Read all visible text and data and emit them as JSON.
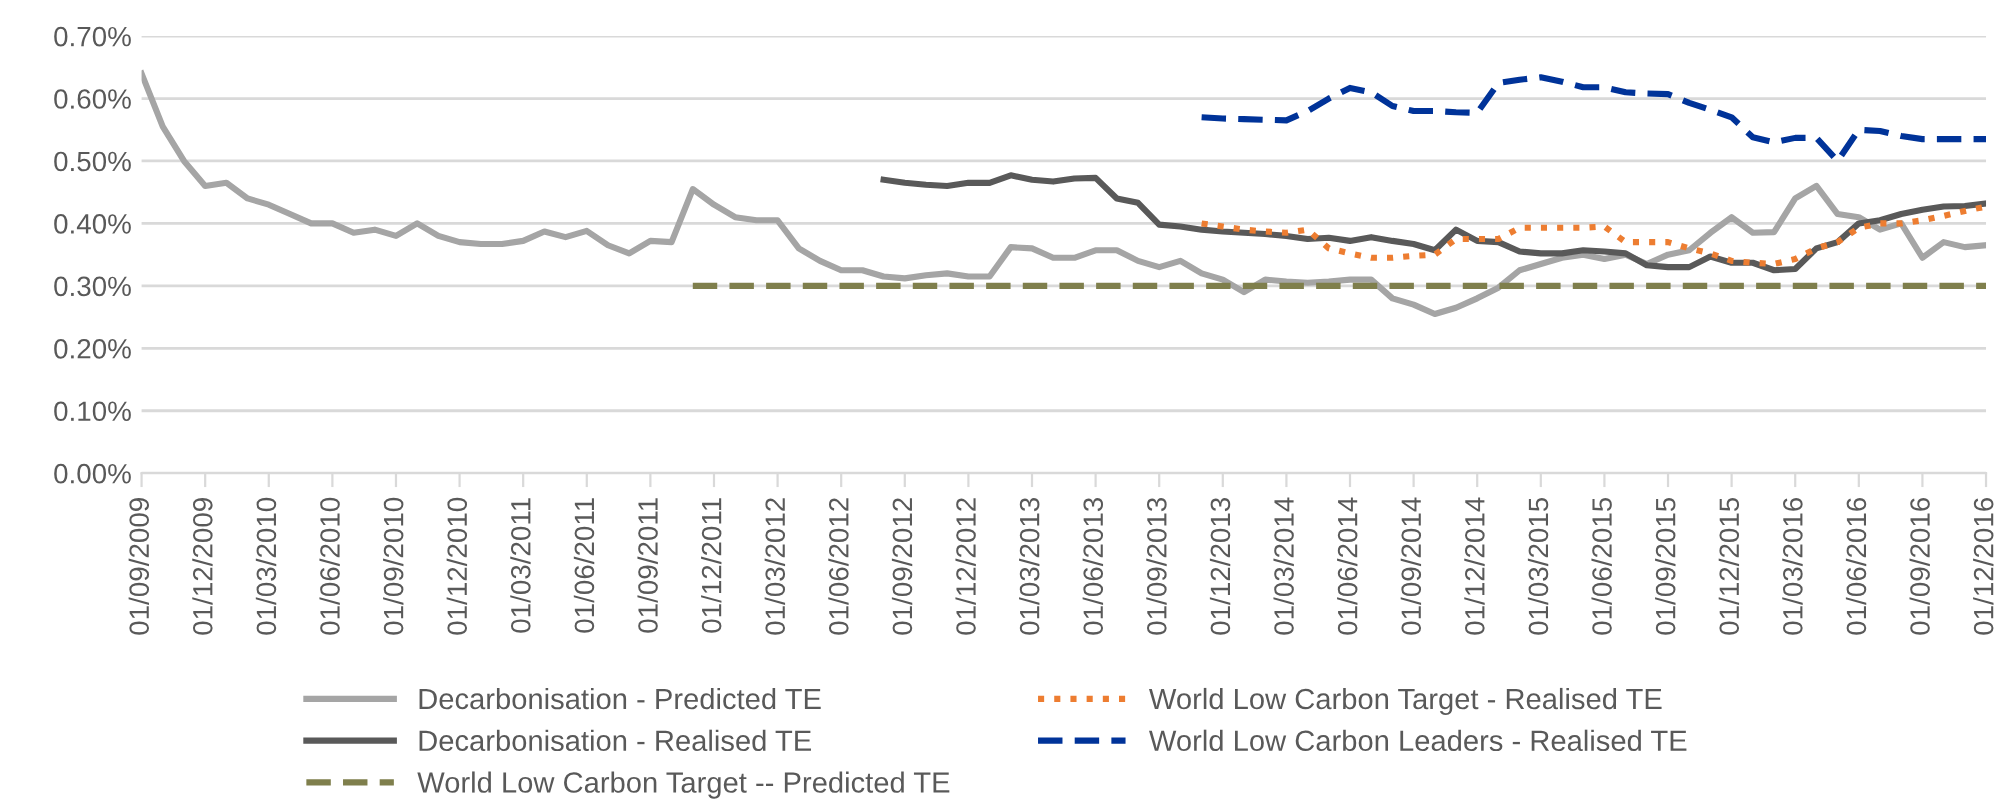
{
  "chart_data": {
    "type": "line",
    "categories": [
      "01/09/2009",
      null,
      null,
      "01/12/2009",
      null,
      null,
      "01/03/2010",
      null,
      null,
      "01/06/2010",
      null,
      null,
      "01/09/2010",
      null,
      null,
      "01/12/2010",
      null,
      null,
      "01/03/2011",
      null,
      null,
      "01/06/2011",
      null,
      null,
      "01/09/2011",
      null,
      null,
      "01/12/2011",
      null,
      null,
      "01/03/2012",
      null,
      null,
      "01/06/2012",
      null,
      null,
      "01/09/2012",
      null,
      null,
      "01/12/2012",
      null,
      null,
      "01/03/2013",
      null,
      null,
      "01/06/2013",
      null,
      null,
      "01/09/2013",
      null,
      null,
      "01/12/2013",
      null,
      null,
      "01/03/2014",
      null,
      null,
      "01/06/2014",
      null,
      null,
      "01/09/2014",
      null,
      null,
      "01/12/2014",
      null,
      null,
      "01/03/2015",
      null,
      null,
      "01/06/2015",
      null,
      null,
      "01/09/2015",
      null,
      null,
      "01/12/2015",
      null,
      null,
      "01/03/2016",
      null,
      null,
      "01/06/2016",
      null,
      null,
      "01/09/2016",
      null,
      null,
      "01/12/2016"
    ],
    "ylim": [
      0,
      0.7
    ],
    "yticks": [
      {
        "value": 0,
        "label": "0.00%"
      },
      {
        "value": 0.1,
        "label": "0.10%"
      },
      {
        "value": 0.2,
        "label": "0.20%"
      },
      {
        "value": 0.3,
        "label": "0.30%"
      },
      {
        "value": 0.4,
        "label": "0.40%"
      },
      {
        "value": 0.5,
        "label": "0.50%"
      },
      {
        "value": 0.6,
        "label": "0.60%"
      },
      {
        "value": 0.7,
        "label": "0.70%"
      }
    ],
    "grid": "y",
    "legend": "bottom",
    "marker": "none",
    "series": [
      {
        "name": "Decarbonisation - Predicted TE",
        "color": "#a5a5a5",
        "line_style": "solid",
        "values": [
          0.64,
          0.555,
          0.5,
          0.46,
          0.465,
          0.44,
          0.43,
          0.415,
          0.4,
          0.4,
          0.385,
          0.39,
          0.38,
          0.4,
          0.38,
          0.37,
          0.367,
          0.367,
          0.372,
          0.387,
          0.378,
          0.388,
          0.365,
          0.352,
          0.372,
          0.37,
          0.455,
          0.43,
          0.41,
          0.405,
          0.405,
          0.36,
          0.34,
          0.325,
          0.325,
          0.315,
          0.312,
          0.317,
          0.32,
          0.315,
          0.315,
          0.362,
          0.36,
          0.345,
          0.345,
          0.357,
          0.357,
          0.34,
          0.33,
          0.34,
          0.32,
          0.31,
          0.29,
          0.31,
          0.307,
          0.305,
          0.307,
          0.31,
          0.31,
          0.28,
          0.27,
          0.255,
          0.265,
          0.28,
          0.297,
          0.325,
          0.335,
          0.345,
          0.35,
          0.343,
          0.35,
          0.335,
          0.35,
          0.357,
          0.385,
          0.41,
          0.385,
          0.386,
          0.44,
          0.46,
          0.415,
          0.41,
          0.39,
          0.4,
          0.345,
          0.37,
          0.362,
          0.365
        ]
      },
      {
        "name": "Decarbonisation - Realised TE",
        "color": "#595959",
        "line_style": "solid",
        "values": [
          null,
          null,
          null,
          null,
          null,
          null,
          null,
          null,
          null,
          null,
          null,
          null,
          null,
          null,
          null,
          null,
          null,
          null,
          null,
          null,
          null,
          null,
          null,
          null,
          null,
          null,
          null,
          null,
          null,
          null,
          null,
          null,
          null,
          null,
          null,
          0.47,
          0.465,
          0.462,
          0.46,
          0.465,
          0.465,
          0.477,
          0.47,
          0.467,
          0.472,
          0.473,
          0.44,
          0.433,
          0.398,
          0.395,
          0.39,
          0.387,
          0.385,
          0.383,
          0.38,
          0.375,
          0.377,
          0.372,
          0.378,
          0.372,
          0.367,
          0.357,
          0.39,
          0.372,
          0.37,
          0.355,
          0.352,
          0.352,
          0.357,
          0.355,
          0.352,
          0.333,
          0.33,
          0.33,
          0.347,
          0.337,
          0.337,
          0.325,
          0.327,
          0.36,
          0.37,
          0.4,
          0.405,
          0.415,
          0.422,
          0.427,
          0.428,
          0.432
        ]
      },
      {
        "name": "World Low Carbon Target -- Predicted TE",
        "color": "#7f7f4c",
        "line_style": "dashed",
        "values": [
          null,
          null,
          null,
          null,
          null,
          null,
          null,
          null,
          null,
          null,
          null,
          null,
          null,
          null,
          null,
          null,
          null,
          null,
          null,
          null,
          null,
          null,
          null,
          null,
          null,
          null,
          0.3,
          0.3,
          0.3,
          0.3,
          0.3,
          0.3,
          0.3,
          0.3,
          0.3,
          0.3,
          0.3,
          0.3,
          0.3,
          0.3,
          0.3,
          0.3,
          0.3,
          0.3,
          0.3,
          0.3,
          0.3,
          0.3,
          0.3,
          0.3,
          0.3,
          0.3,
          0.3,
          0.3,
          0.3,
          0.3,
          0.3,
          0.3,
          0.3,
          0.3,
          0.3,
          0.3,
          0.3,
          0.3,
          0.3,
          0.3,
          0.3,
          0.3,
          0.3,
          0.3,
          0.3,
          0.3,
          0.3,
          0.3,
          0.3,
          0.3,
          0.3,
          0.3,
          0.3,
          0.3,
          0.3,
          0.3,
          0.3,
          0.3,
          0.3,
          0.3,
          0.3,
          0.3
        ]
      },
      {
        "name": "World Low Carbon Target - Realised TE",
        "color": "#ed7d31",
        "line_style": "dotted",
        "values": [
          null,
          null,
          null,
          null,
          null,
          null,
          null,
          null,
          null,
          null,
          null,
          null,
          null,
          null,
          null,
          null,
          null,
          null,
          null,
          null,
          null,
          null,
          null,
          null,
          null,
          null,
          null,
          null,
          null,
          null,
          null,
          null,
          null,
          null,
          null,
          null,
          null,
          null,
          null,
          null,
          null,
          null,
          null,
          null,
          null,
          null,
          null,
          null,
          null,
          null,
          0.4,
          0.395,
          0.39,
          0.387,
          0.385,
          0.39,
          0.36,
          0.352,
          0.345,
          0.345,
          0.348,
          0.35,
          0.375,
          0.375,
          0.375,
          0.393,
          0.393,
          0.393,
          0.393,
          0.395,
          0.37,
          0.37,
          0.37,
          0.36,
          0.352,
          0.34,
          0.337,
          0.335,
          0.343,
          0.36,
          0.37,
          0.393,
          0.4,
          0.4,
          0.405,
          0.412,
          0.42,
          0.427
        ]
      },
      {
        "name": "World Low Carbon Leaders - Realised TE",
        "color": "#003399",
        "line_style": "dashed",
        "values": [
          null,
          null,
          null,
          null,
          null,
          null,
          null,
          null,
          null,
          null,
          null,
          null,
          null,
          null,
          null,
          null,
          null,
          null,
          null,
          null,
          null,
          null,
          null,
          null,
          null,
          null,
          null,
          null,
          null,
          null,
          null,
          null,
          null,
          null,
          null,
          null,
          null,
          null,
          null,
          null,
          null,
          null,
          null,
          null,
          null,
          null,
          null,
          null,
          null,
          null,
          0.57,
          0.568,
          0.567,
          0.566,
          0.565,
          0.58,
          0.6,
          0.617,
          0.61,
          0.588,
          0.58,
          0.58,
          0.578,
          0.577,
          0.625,
          0.63,
          0.634,
          0.627,
          0.618,
          0.618,
          0.61,
          0.608,
          0.607,
          0.593,
          0.582,
          0.57,
          0.538,
          0.53,
          0.537,
          0.537,
          0.5,
          0.55,
          0.548,
          0.54,
          0.535,
          0.535,
          0.535,
          0.535
        ]
      }
    ]
  }
}
